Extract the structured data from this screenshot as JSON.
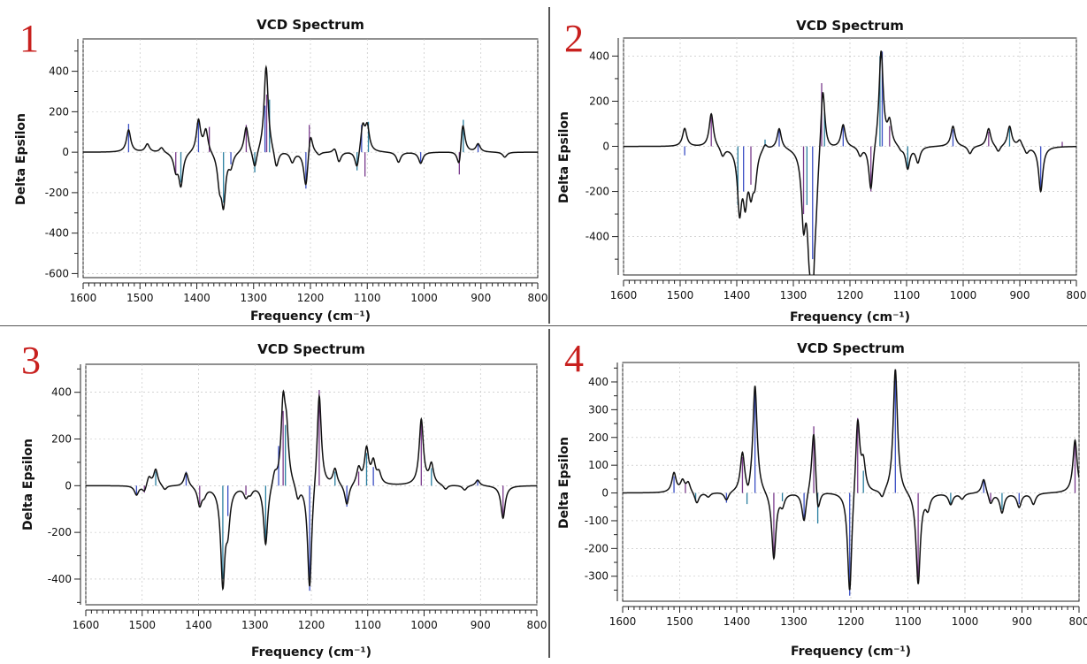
{
  "chart_data": [
    {
      "type": "line",
      "panel_label": "1",
      "title": "VCD Spectrum",
      "xlabel": "Frequency (cm⁻¹)",
      "ylabel": "Delta Epsilon",
      "xlim": [
        1600,
        800
      ],
      "ylim": [
        -620,
        560
      ],
      "xticks": [
        1600,
        1500,
        1400,
        1300,
        1200,
        1100,
        1000,
        900,
        800
      ],
      "yticks": [
        400,
        200,
        0,
        -200,
        -400,
        -600
      ],
      "grid": true,
      "peaks": [
        [
          1520,
          110
        ],
        [
          1487,
          40
        ],
        [
          1462,
          25
        ],
        [
          1437,
          -80
        ],
        [
          1428,
          -160
        ],
        [
          1397,
          160
        ],
        [
          1384,
          110
        ],
        [
          1360,
          -140
        ],
        [
          1353,
          -240
        ],
        [
          1340,
          -60
        ],
        [
          1313,
          130
        ],
        [
          1298,
          -95
        ],
        [
          1278,
          430
        ],
        [
          1260,
          -90
        ],
        [
          1232,
          -50
        ],
        [
          1208,
          -185
        ],
        [
          1200,
          115
        ],
        [
          1185,
          -15
        ],
        [
          1157,
          30
        ],
        [
          1150,
          -55
        ],
        [
          1118,
          -95
        ],
        [
          1108,
          130
        ],
        [
          1100,
          120
        ],
        [
          1045,
          -50
        ],
        [
          1006,
          -55
        ],
        [
          938,
          -105
        ],
        [
          932,
          165
        ],
        [
          905,
          40
        ],
        [
          858,
          -25
        ]
      ],
      "sticks": [
        [
          1520,
          140
        ],
        [
          1437,
          -110
        ],
        [
          1428,
          -150
        ],
        [
          1397,
          160
        ],
        [
          1378,
          125
        ],
        [
          1353,
          -250
        ],
        [
          1340,
          -60
        ],
        [
          1313,
          135
        ],
        [
          1298,
          -100
        ],
        [
          1280,
          230
        ],
        [
          1277,
          285
        ],
        [
          1272,
          260
        ],
        [
          1208,
          -180
        ],
        [
          1202,
          135
        ],
        [
          1118,
          -90
        ],
        [
          1110,
          135
        ],
        [
          1104,
          -120
        ],
        [
          1098,
          150
        ],
        [
          1006,
          -50
        ],
        [
          938,
          -110
        ],
        [
          931,
          160
        ],
        [
          905,
          40
        ]
      ]
    },
    {
      "type": "line",
      "panel_label": "2",
      "title": "VCD Spectrum",
      "xlabel": "Frequency (cm⁻¹)",
      "ylabel": "Delta Epsilon",
      "xlim": [
        1600,
        800
      ],
      "ylim": [
        -570,
        480
      ],
      "xticks": [
        1600,
        1500,
        1400,
        1300,
        1200,
        1100,
        1000,
        900,
        800
      ],
      "yticks": [
        400,
        200,
        0,
        -200,
        -400
      ],
      "grid": true,
      "peaks": [
        [
          1492,
          80
        ],
        [
          1445,
          150
        ],
        [
          1425,
          -40
        ],
        [
          1395,
          -270
        ],
        [
          1385,
          -210
        ],
        [
          1375,
          -160
        ],
        [
          1368,
          -130
        ],
        [
          1350,
          25
        ],
        [
          1325,
          90
        ],
        [
          1282,
          -300
        ],
        [
          1272,
          -300
        ],
        [
          1266,
          -510
        ],
        [
          1260,
          -150
        ],
        [
          1248,
          300
        ],
        [
          1212,
          100
        ],
        [
          1182,
          -40
        ],
        [
          1163,
          -210
        ],
        [
          1145,
          430
        ],
        [
          1130,
          100
        ],
        [
          1110,
          -15
        ],
        [
          1098,
          -100
        ],
        [
          1080,
          -70
        ],
        [
          1018,
          90
        ],
        [
          988,
          -35
        ],
        [
          955,
          80
        ],
        [
          938,
          -30
        ],
        [
          918,
          90
        ],
        [
          900,
          30
        ],
        [
          888,
          -30
        ],
        [
          863,
          -200
        ]
      ],
      "sticks": [
        [
          1492,
          -40
        ],
        [
          1445,
          130
        ],
        [
          1398,
          -260
        ],
        [
          1388,
          -200
        ],
        [
          1375,
          -170
        ],
        [
          1350,
          30
        ],
        [
          1325,
          75
        ],
        [
          1282,
          -300
        ],
        [
          1276,
          -260
        ],
        [
          1266,
          -500
        ],
        [
          1250,
          280
        ],
        [
          1245,
          150
        ],
        [
          1212,
          95
        ],
        [
          1163,
          -200
        ],
        [
          1147,
          400
        ],
        [
          1143,
          420
        ],
        [
          1130,
          90
        ],
        [
          1098,
          -100
        ],
        [
          1018,
          75
        ],
        [
          955,
          65
        ],
        [
          918,
          80
        ],
        [
          863,
          -190
        ],
        [
          825,
          20
        ]
      ]
    },
    {
      "type": "line",
      "panel_label": "3",
      "title": "VCD Spectrum",
      "xlabel": "Frequency (cm⁻¹)",
      "ylabel": "Delta Epsilon",
      "xlim": [
        1600,
        800
      ],
      "ylim": [
        -510,
        520
      ],
      "xticks": [
        1600,
        1500,
        1400,
        1300,
        1200,
        1100,
        1000,
        900,
        800
      ],
      "yticks": [
        400,
        200,
        0,
        -200,
        -400
      ],
      "grid": true,
      "peaks": [
        [
          1510,
          -40
        ],
        [
          1496,
          -30
        ],
        [
          1488,
          40
        ],
        [
          1476,
          70
        ],
        [
          1460,
          -20
        ],
        [
          1422,
          60
        ],
        [
          1398,
          -80
        ],
        [
          1390,
          -30
        ],
        [
          1357,
          -410
        ],
        [
          1348,
          -150
        ],
        [
          1316,
          -40
        ],
        [
          1308,
          -25
        ],
        [
          1281,
          -260
        ],
        [
          1265,
          50
        ],
        [
          1250,
          335
        ],
        [
          1244,
          200
        ],
        [
          1224,
          -60
        ],
        [
          1203,
          -460
        ],
        [
          1186,
          410
        ],
        [
          1158,
          70
        ],
        [
          1137,
          -90
        ],
        [
          1116,
          70
        ],
        [
          1102,
          150
        ],
        [
          1090,
          90
        ],
        [
          1080,
          45
        ],
        [
          1005,
          280
        ],
        [
          987,
          85
        ],
        [
          962,
          -20
        ],
        [
          928,
          -20
        ],
        [
          905,
          25
        ],
        [
          860,
          -140
        ]
      ],
      "sticks": [
        [
          1510,
          -40
        ],
        [
          1496,
          -30
        ],
        [
          1476,
          60
        ],
        [
          1422,
          60
        ],
        [
          1398,
          -80
        ],
        [
          1357,
          -400
        ],
        [
          1348,
          -130
        ],
        [
          1316,
          -40
        ],
        [
          1281,
          -250
        ],
        [
          1258,
          170
        ],
        [
          1250,
          320
        ],
        [
          1246,
          260
        ],
        [
          1203,
          -450
        ],
        [
          1186,
          410
        ],
        [
          1158,
          60
        ],
        [
          1137,
          -90
        ],
        [
          1116,
          60
        ],
        [
          1102,
          140
        ],
        [
          1090,
          80
        ],
        [
          1005,
          280
        ],
        [
          987,
          75
        ],
        [
          905,
          20
        ],
        [
          860,
          -130
        ]
      ]
    },
    {
      "type": "line",
      "panel_label": "4",
      "title": "VCD Spectrum",
      "xlabel": "Frequency (cm⁻¹)",
      "ylabel": "Delta Epsilon",
      "xlim": [
        1600,
        800
      ],
      "ylim": [
        -390,
        470
      ],
      "xticks": [
        1600,
        1500,
        1400,
        1300,
        1200,
        1100,
        1000,
        900,
        800
      ],
      "yticks": [
        400,
        300,
        200,
        100,
        0,
        -100,
        -200,
        -300
      ],
      "grid": true,
      "peaks": [
        [
          1510,
          70
        ],
        [
          1495,
          40
        ],
        [
          1485,
          35
        ],
        [
          1470,
          -40
        ],
        [
          1450,
          -15
        ],
        [
          1418,
          -30
        ],
        [
          1390,
          140
        ],
        [
          1380,
          -40
        ],
        [
          1368,
          390
        ],
        [
          1335,
          -240
        ],
        [
          1320,
          -40
        ],
        [
          1282,
          -110
        ],
        [
          1265,
          250
        ],
        [
          1258,
          -110
        ],
        [
          1202,
          -380
        ],
        [
          1188,
          280
        ],
        [
          1178,
          100
        ],
        [
          1145,
          -30
        ],
        [
          1122,
          450
        ],
        [
          1082,
          -330
        ],
        [
          1065,
          -50
        ],
        [
          1025,
          -40
        ],
        [
          1005,
          -20
        ],
        [
          967,
          55
        ],
        [
          955,
          -40
        ],
        [
          935,
          -70
        ],
        [
          905,
          -50
        ],
        [
          880,
          -40
        ],
        [
          807,
          190
        ]
      ],
      "sticks": [
        [
          1510,
          60
        ],
        [
          1490,
          35
        ],
        [
          1472,
          -30
        ],
        [
          1418,
          -35
        ],
        [
          1390,
          130
        ],
        [
          1382,
          -40
        ],
        [
          1368,
          380
        ],
        [
          1335,
          -230
        ],
        [
          1320,
          -30
        ],
        [
          1282,
          -100
        ],
        [
          1265,
          240
        ],
        [
          1258,
          -110
        ],
        [
          1202,
          -370
        ],
        [
          1188,
          270
        ],
        [
          1178,
          80
        ],
        [
          1122,
          440
        ],
        [
          1082,
          -320
        ],
        [
          1025,
          -40
        ],
        [
          967,
          50
        ],
        [
          955,
          -30
        ],
        [
          935,
          -60
        ],
        [
          905,
          -40
        ],
        [
          807,
          190
        ]
      ]
    }
  ]
}
